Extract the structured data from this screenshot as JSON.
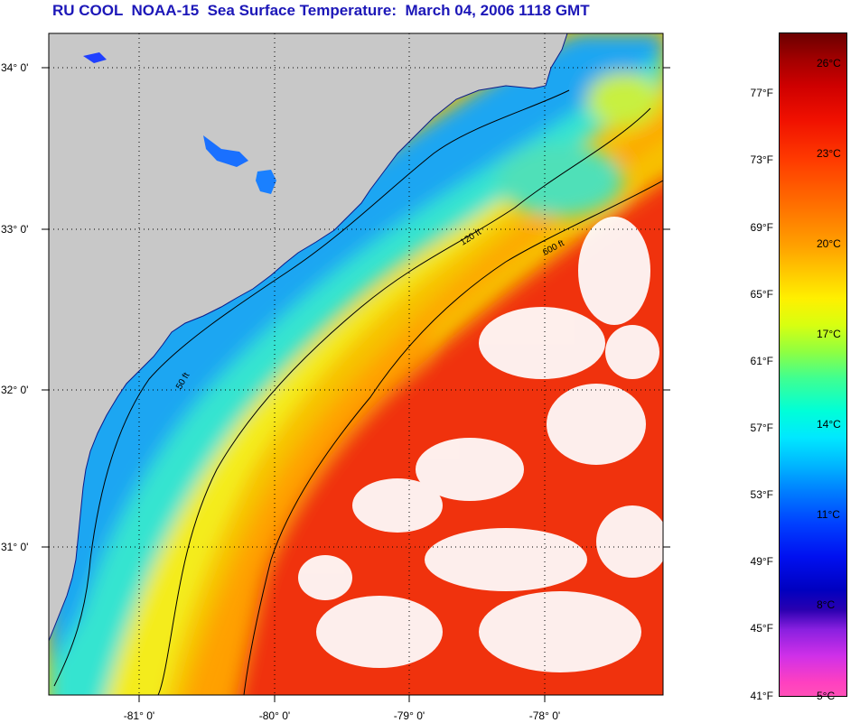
{
  "title": "RU COOL  NOAA-15  Sea Surface Temperature:  March 04, 2006 1118 GMT",
  "map": {
    "lon_labels": [
      "-81° 0'",
      "-80° 0'",
      "-79° 0'",
      "-78° 0'"
    ],
    "lat_labels": [
      "34° 0'",
      "33° 0'",
      "32° 0'",
      "31° 0'"
    ],
    "contour_labels": [
      "50 ft",
      "120 ft",
      "600 ft"
    ],
    "colors": {
      "land": "#c8c8c8",
      "cloud": "#ffffff",
      "coastal_cold": "#19a8f0",
      "mid_shelf": "#4ee4e0",
      "outer_shelf": "#f4f020",
      "gulf_stream": "#f42a0a",
      "contour": "#000000"
    }
  },
  "colorbar": {
    "fahrenheit_labels": [
      "77°F",
      "73°F",
      "69°F",
      "65°F",
      "61°F",
      "57°F",
      "53°F",
      "49°F",
      "45°F",
      "41°F"
    ],
    "celsius_labels": [
      "26°C",
      "23°C",
      "20°C",
      "17°C",
      "14°C",
      "11°C",
      "8°C",
      "5°C"
    ]
  }
}
